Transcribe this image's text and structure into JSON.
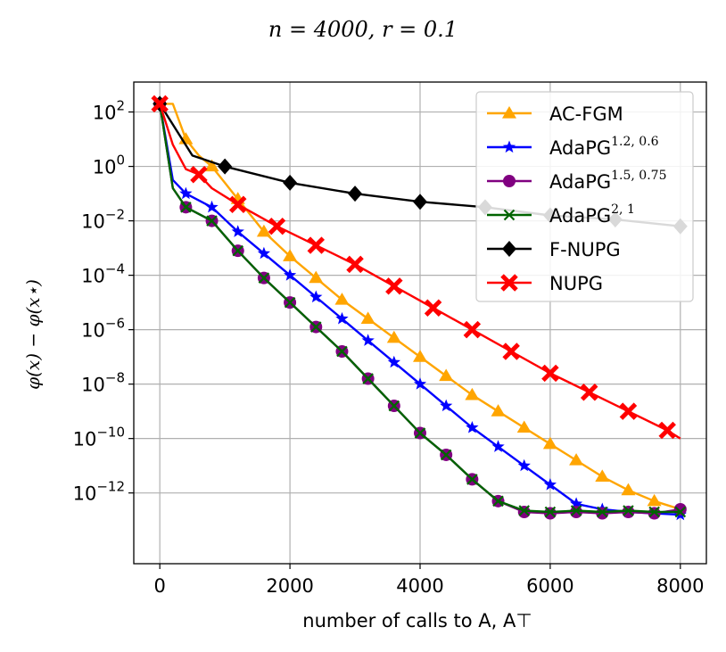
{
  "chart_data": {
    "type": "line",
    "title": "n = 4000, r = 0.1",
    "xlabel": "number of calls to A, A⊤",
    "ylabel": "φ(x) − φ(x⋆)",
    "xscale": "linear",
    "yscale": "log",
    "xlim": [
      -400,
      8400
    ],
    "ylim_log10": [
      -14.6,
      3.1
    ],
    "grid": true,
    "legend_loc": "upper right",
    "xticks": [
      0,
      2000,
      4000,
      6000,
      8000
    ],
    "xtick_labels": [
      "0",
      "2000",
      "4000",
      "6000",
      "8000"
    ],
    "yticks_log10": [
      2,
      0,
      -2,
      -4,
      -6,
      -8,
      -10,
      -12
    ],
    "ytick_labels": [
      {
        "base": "10",
        "exp": "2"
      },
      {
        "base": "10",
        "exp": "0"
      },
      {
        "base": "10",
        "exp": "−2"
      },
      {
        "base": "10",
        "exp": "−4"
      },
      {
        "base": "10",
        "exp": "−6"
      },
      {
        "base": "10",
        "exp": "−8"
      },
      {
        "base": "10",
        "exp": "−10"
      },
      {
        "base": "10",
        "exp": "−12"
      }
    ],
    "series": [
      {
        "name": "AC-FGM",
        "legend": "AC-FGM",
        "legend_sup": "",
        "color": "#ffa500",
        "marker": "triangle",
        "x": [
          0,
          200,
          400,
          600,
          800,
          1000,
          1200,
          1600,
          2000,
          2400,
          2800,
          3200,
          3600,
          4000,
          4400,
          4800,
          5200,
          5600,
          6000,
          6400,
          6800,
          7200,
          7600,
          8000
        ],
        "log10y": [
          2.3,
          2.3,
          1.0,
          0.4,
          0.0,
          -0.6,
          -1.2,
          -2.4,
          -3.3,
          -4.1,
          -4.9,
          -5.6,
          -6.3,
          -7.0,
          -7.7,
          -8.4,
          -9.0,
          -9.6,
          -10.2,
          -10.8,
          -11.4,
          -11.9,
          -12.3,
          -12.6
        ],
        "markers_x": [
          0,
          400,
          800,
          1200,
          1600,
          2000,
          2400,
          2800,
          3200,
          3600,
          4000,
          4400,
          4800,
          5200,
          5600,
          6000,
          6400,
          6800,
          7200,
          7600
        ]
      },
      {
        "name": "AdaPG^{1.2,0.6}",
        "legend": "AdaPG",
        "legend_sup": "1.2, 0.6",
        "color": "#0000ff",
        "marker": "star",
        "x": [
          0,
          200,
          400,
          800,
          1200,
          1600,
          2000,
          2400,
          2800,
          3200,
          3600,
          4000,
          4400,
          4800,
          5200,
          5600,
          6000,
          6400,
          6800,
          7200,
          7600,
          8000
        ],
        "log10y": [
          2.3,
          -0.5,
          -1.0,
          -1.5,
          -2.4,
          -3.2,
          -4.0,
          -4.8,
          -5.6,
          -6.4,
          -7.2,
          -8.0,
          -8.8,
          -9.6,
          -10.3,
          -11.0,
          -11.7,
          -12.4,
          -12.6,
          -12.7,
          -12.75,
          -12.8
        ],
        "markers_x": [
          0,
          400,
          800,
          1200,
          1600,
          2000,
          2400,
          2800,
          3200,
          3600,
          4000,
          4400,
          4800,
          5200,
          5600,
          6000,
          6400,
          6800,
          7200,
          7600,
          8000
        ]
      },
      {
        "name": "AdaPG^{1.5,0.75}",
        "legend": "AdaPG",
        "legend_sup": "1.5, 0.75",
        "color": "#800080",
        "marker": "circle",
        "x": [
          0,
          200,
          400,
          800,
          1200,
          1600,
          2000,
          2400,
          2800,
          3200,
          3600,
          4000,
          4400,
          4800,
          5200,
          5600,
          6000,
          6400,
          6800,
          7200,
          7600,
          8000
        ],
        "log10y": [
          2.3,
          -0.8,
          -1.5,
          -2.0,
          -3.1,
          -4.1,
          -5.0,
          -5.9,
          -6.8,
          -7.8,
          -8.8,
          -9.8,
          -10.6,
          -11.5,
          -12.3,
          -12.7,
          -12.75,
          -12.7,
          -12.75,
          -12.7,
          -12.75,
          -12.6
        ],
        "markers_x": [
          0,
          400,
          800,
          1200,
          1600,
          2000,
          2400,
          2800,
          3200,
          3600,
          4000,
          4400,
          4800,
          5200,
          5600,
          6000,
          6400,
          6800,
          7200,
          7600,
          8000
        ]
      },
      {
        "name": "AdaPG^{2,1}",
        "legend": "AdaPG",
        "legend_sup": "2, 1",
        "color": "#006400",
        "marker": "x",
        "x": [
          0,
          200,
          400,
          800,
          1200,
          1600,
          2000,
          2400,
          2800,
          3200,
          3600,
          4000,
          4400,
          4800,
          5200,
          5600,
          6000,
          6400,
          6800,
          7200,
          7600,
          8000
        ],
        "log10y": [
          2.3,
          -0.8,
          -1.5,
          -2.0,
          -3.1,
          -4.1,
          -5.0,
          -5.9,
          -6.8,
          -7.8,
          -8.8,
          -9.8,
          -10.6,
          -11.5,
          -12.3,
          -12.65,
          -12.7,
          -12.65,
          -12.7,
          -12.65,
          -12.7,
          -12.7
        ],
        "markers_x": [
          0,
          400,
          800,
          1200,
          1600,
          2000,
          2400,
          2800,
          3200,
          3600,
          4000,
          4400,
          4800,
          5200,
          5600,
          6000,
          6400,
          6800,
          7200,
          7600,
          8000
        ]
      },
      {
        "name": "F-NUPG",
        "legend": "F-NUPG",
        "legend_sup": "",
        "color": "#000000",
        "marker": "diamond",
        "x": [
          0,
          500,
          1000,
          2000,
          3000,
          4000,
          5000,
          6000,
          7000,
          8000
        ],
        "log10y": [
          2.3,
          0.4,
          0.0,
          -0.6,
          -1.0,
          -1.3,
          -1.5,
          -1.8,
          -1.95,
          -2.2
        ],
        "markers_x": [
          0,
          1000,
          2000,
          3000,
          4000,
          5000,
          6000,
          7000,
          8000
        ]
      },
      {
        "name": "NUPG",
        "legend": "NUPG",
        "legend_sup": "",
        "color": "#ff0000",
        "marker": "x-filled",
        "x": [
          0,
          200,
          400,
          600,
          800,
          1200,
          1800,
          2400,
          3000,
          3600,
          4200,
          4800,
          5400,
          6000,
          6600,
          7200,
          7800,
          8000
        ],
        "log10y": [
          2.3,
          0.8,
          -0.1,
          -0.3,
          -0.8,
          -1.4,
          -2.2,
          -2.9,
          -3.6,
          -4.4,
          -5.2,
          -6.0,
          -6.8,
          -7.6,
          -8.3,
          -9.0,
          -9.7,
          -10.0
        ],
        "markers_x": [
          0,
          600,
          1200,
          1800,
          2400,
          3000,
          3600,
          4200,
          4800,
          5400,
          6000,
          6600,
          7200,
          7800
        ]
      }
    ]
  }
}
